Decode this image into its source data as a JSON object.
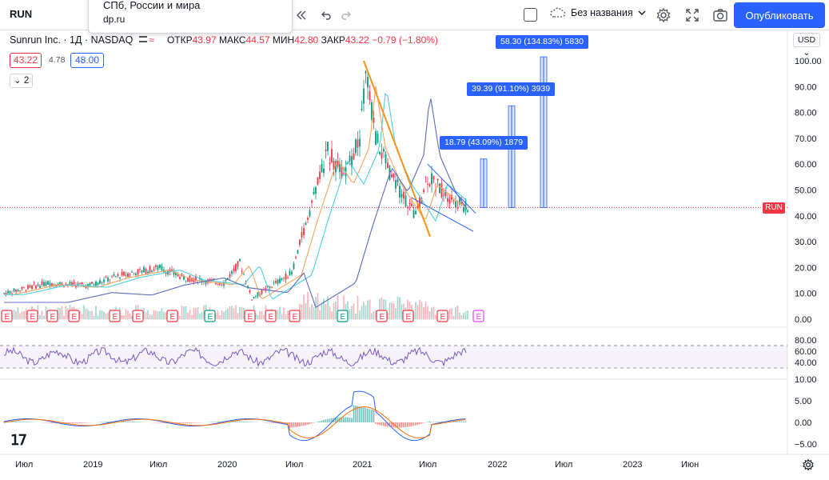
{
  "toolbar": {
    "symbol": "RUN",
    "layout_name": "Без названия",
    "publish_label": "Опубликовать"
  },
  "popup": {
    "line1": "СПб, России и мира",
    "line2": "dp.ru"
  },
  "legend": {
    "title": "Sunrun Inc. · 1Д · NASDAQ",
    "open_label": "ОТКР",
    "open_value": "43.97",
    "high_label": "МАКС",
    "high_value": "44.57",
    "low_label": "МИН",
    "low_value": "42.80",
    "close_label": "ЗАКР",
    "close_value": "43.22",
    "change": "−0.79 (−1.80%)",
    "bid": "43.22",
    "spread": "4.78",
    "ask": "48.00",
    "collapsed_count": "2"
  },
  "currency": "USD",
  "price_tag": "RUN",
  "price_axis": [
    "100.00",
    "90.00",
    "80.00",
    "70.00",
    "60.00",
    "50.00",
    "40.00",
    "30.00",
    "20.00",
    "10.00",
    "0.00"
  ],
  "rsi_axis": [
    "80.00",
    "60.00",
    "40.00"
  ],
  "macd_axis": [
    "10.00",
    "5.00",
    "0.00",
    "−5.00"
  ],
  "time_axis": [
    "Июл",
    "2019",
    "Июл",
    "2020",
    "Июл",
    "2021",
    "Июл",
    "2022",
    "Июл",
    "2023",
    "Июн"
  ],
  "measurements": [
    {
      "label": "18.79 (43.09%) 1879"
    },
    {
      "label": "39.39 (91.10%) 3939"
    },
    {
      "label": "58.30 (134.83%) 5830"
    }
  ],
  "earnings_marker": "E",
  "colors": {
    "accent": "#2962ff",
    "down": "#f23645",
    "up": "#089981",
    "trend": "#f7931a",
    "rsi": "#7e57c2"
  }
}
